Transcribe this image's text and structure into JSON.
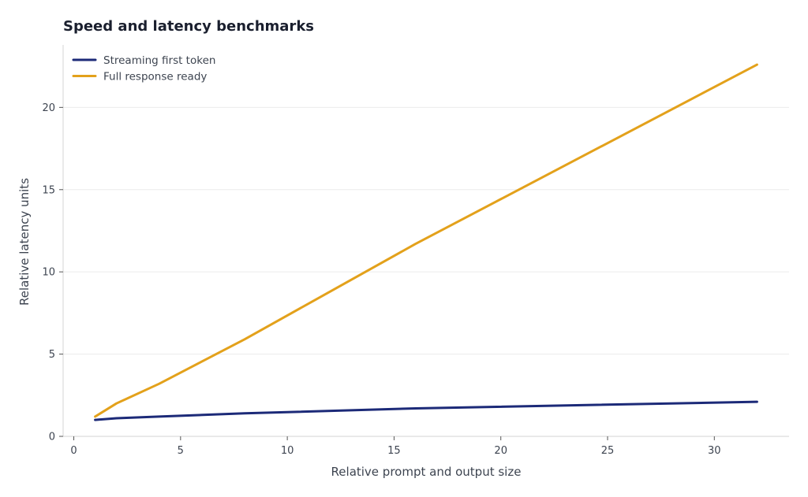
{
  "chart_data": {
    "type": "line",
    "title": "Speed and latency benchmarks",
    "xlabel": "Relative prompt and output size",
    "ylabel": "Relative latency units",
    "xlim": [
      -0.5,
      33.5
    ],
    "ylim": [
      0,
      23.8
    ],
    "xticks": [
      0,
      5,
      10,
      15,
      20,
      25,
      30
    ],
    "yticks": [
      0,
      5,
      10,
      15,
      20
    ],
    "grid": "horizontal",
    "legend": "top-left",
    "series": [
      {
        "name": "Streaming first token",
        "color": "#1c2a78",
        "x": [
          1,
          2,
          4,
          8,
          16,
          32
        ],
        "y": [
          1.0,
          1.1,
          1.2,
          1.4,
          1.7,
          2.1
        ]
      },
      {
        "name": "Full response ready",
        "color": "#e3a11b",
        "x": [
          1,
          2,
          4,
          8,
          16,
          32
        ],
        "y": [
          1.2,
          2.0,
          3.2,
          5.9,
          11.7,
          22.6
        ]
      }
    ]
  }
}
